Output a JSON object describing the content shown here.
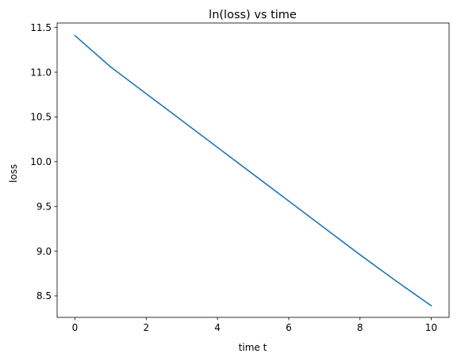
{
  "chart_data": {
    "type": "line",
    "title": "ln(loss) vs time",
    "xlabel": "time t",
    "ylabel": "loss",
    "xlim": [
      -0.5,
      10.5
    ],
    "ylim": [
      8.26,
      11.55
    ],
    "xticks": [
      0,
      2,
      4,
      6,
      8,
      10
    ],
    "yticks": [
      8.5,
      9.0,
      9.5,
      10.0,
      10.5,
      11.0,
      11.5
    ],
    "xtick_labels": [
      "0",
      "2",
      "4",
      "6",
      "8",
      "10"
    ],
    "ytick_labels": [
      "8.5",
      "9.0",
      "9.5",
      "10.0",
      "10.5",
      "11.0",
      "11.5"
    ],
    "grid": false,
    "series": [
      {
        "color": "#1f77b4",
        "x": [
          0,
          1,
          2,
          3,
          4,
          5,
          6,
          7,
          8,
          9,
          10
        ],
        "y": [
          11.41,
          11.06,
          10.76,
          10.46,
          10.16,
          9.86,
          9.56,
          9.26,
          8.96,
          8.67,
          8.39
        ]
      }
    ]
  }
}
